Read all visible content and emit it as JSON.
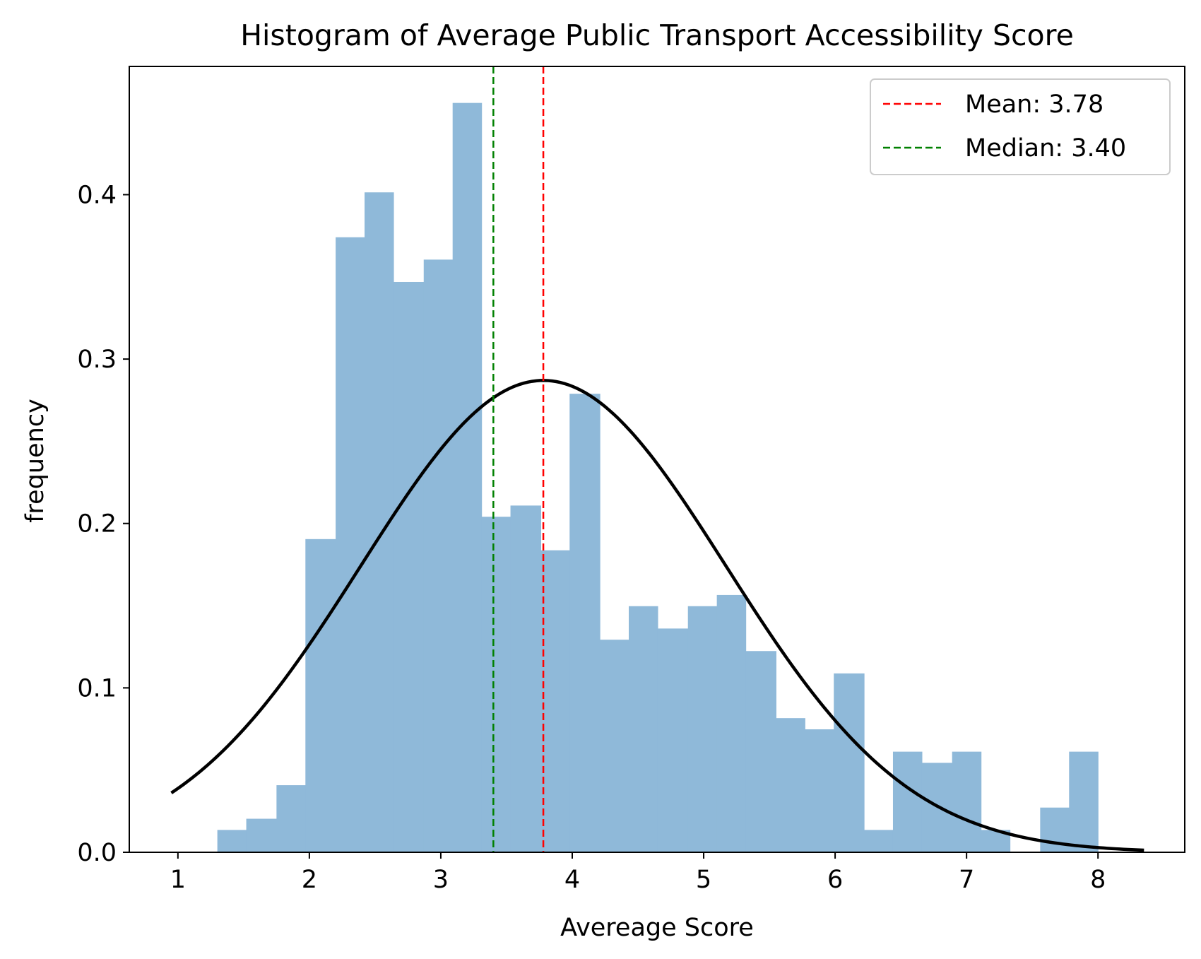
{
  "chart_data": {
    "type": "histogram",
    "title": "Histogram of Average Public Transport Accessibility Score",
    "xlabel": "Avereage Score",
    "ylabel": "frequency",
    "xlim": [
      0.63,
      8.66
    ],
    "ylim": [
      0.0,
      0.478
    ],
    "xticks": [
      1,
      2,
      3,
      4,
      5,
      6,
      7,
      8
    ],
    "yticks": [
      0.0,
      0.1,
      0.2,
      0.3,
      0.4
    ],
    "ytick_labels": [
      "0.0",
      "0.1",
      "0.2",
      "0.3",
      "0.4"
    ],
    "bar_color": "#8fb9d9",
    "bins": [
      {
        "x0": 1.3,
        "x1": 1.52,
        "value": 0.0136
      },
      {
        "x0": 1.52,
        "x1": 1.75,
        "value": 0.0204
      },
      {
        "x0": 1.75,
        "x1": 1.97,
        "value": 0.0408
      },
      {
        "x0": 1.97,
        "x1": 2.2,
        "value": 0.1905
      },
      {
        "x0": 2.2,
        "x1": 2.42,
        "value": 0.3741
      },
      {
        "x0": 2.42,
        "x1": 2.64,
        "value": 0.4014
      },
      {
        "x0": 2.64,
        "x1": 2.87,
        "value": 0.3469
      },
      {
        "x0": 2.87,
        "x1": 3.09,
        "value": 0.3605
      },
      {
        "x0": 3.09,
        "x1": 3.31,
        "value": 0.4558
      },
      {
        "x0": 3.31,
        "x1": 3.53,
        "value": 0.2041
      },
      {
        "x0": 3.53,
        "x1": 3.76,
        "value": 0.2109
      },
      {
        "x0": 3.76,
        "x1": 3.98,
        "value": 0.1837
      },
      {
        "x0": 3.98,
        "x1": 4.21,
        "value": 0.2789
      },
      {
        "x0": 4.21,
        "x1": 4.43,
        "value": 0.1293
      },
      {
        "x0": 4.43,
        "x1": 4.65,
        "value": 0.1497
      },
      {
        "x0": 4.65,
        "x1": 4.88,
        "value": 0.1361
      },
      {
        "x0": 4.88,
        "x1": 5.1,
        "value": 0.1497
      },
      {
        "x0": 5.1,
        "x1": 5.32,
        "value": 0.1565
      },
      {
        "x0": 5.32,
        "x1": 5.55,
        "value": 0.1224
      },
      {
        "x0": 5.55,
        "x1": 5.77,
        "value": 0.0816
      },
      {
        "x0": 5.77,
        "x1": 5.99,
        "value": 0.0748
      },
      {
        "x0": 5.99,
        "x1": 6.22,
        "value": 0.1088
      },
      {
        "x0": 6.22,
        "x1": 6.44,
        "value": 0.0136
      },
      {
        "x0": 6.44,
        "x1": 6.66,
        "value": 0.0612
      },
      {
        "x0": 6.66,
        "x1": 6.89,
        "value": 0.0544
      },
      {
        "x0": 6.89,
        "x1": 7.11,
        "value": 0.0612
      },
      {
        "x0": 7.11,
        "x1": 7.33,
        "value": 0.0136
      },
      {
        "x0": 7.33,
        "x1": 7.56,
        "value": 0.0
      },
      {
        "x0": 7.56,
        "x1": 7.78,
        "value": 0.0272
      },
      {
        "x0": 7.78,
        "x1": 8.0,
        "value": 0.0612
      }
    ],
    "normal_curve": {
      "mean": 3.78,
      "std": 1.39,
      "x_range": [
        0.95,
        8.35
      ],
      "color": "#000000"
    },
    "reference_lines": [
      {
        "name": "mean",
        "x": 3.78,
        "label": "Mean: 3.78",
        "color": "#ff0000",
        "style": "dashed"
      },
      {
        "name": "median",
        "x": 3.4,
        "label": "Median: 3.40",
        "color": "#008000",
        "style": "dashed"
      }
    ],
    "legend_position": "top-right"
  }
}
